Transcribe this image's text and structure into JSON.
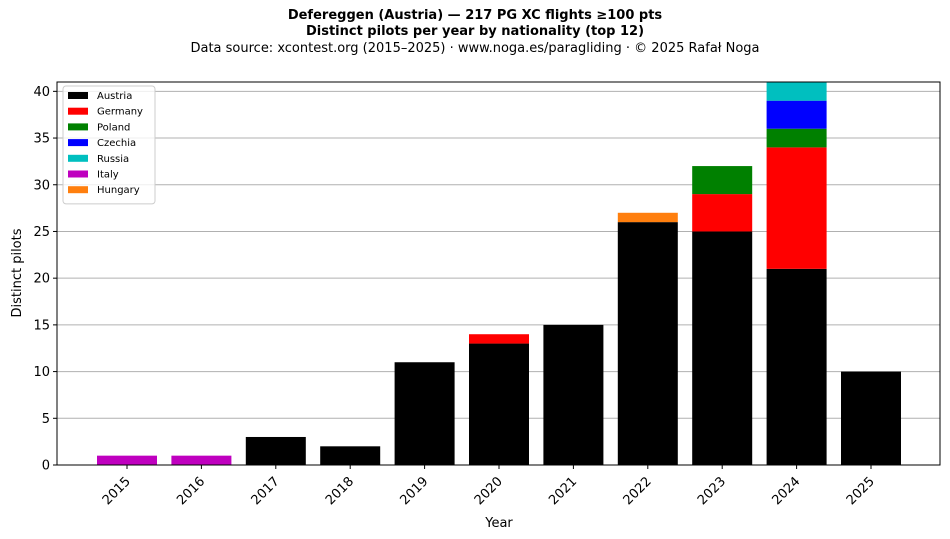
{
  "header": {
    "title_line1": "Defereggen (Austria)  —  217 PG XC flights ≥100 pts",
    "title_line2": "Distinct pilots per year by nationality (top 12)",
    "subtitle": "Data source: xcontest.org (2015–2025)  ·  www.noga.es/paragliding  ·  © 2025 Rafał Noga"
  },
  "chart_data": {
    "type": "bar",
    "stacked": true,
    "xlabel": "Year",
    "ylabel": "Distinct pilots",
    "ylim": [
      0,
      41
    ],
    "yticks": [
      0,
      5,
      10,
      15,
      20,
      25,
      30,
      35,
      40
    ],
    "grid": "horizontal",
    "legend_position": "top-left",
    "categories": [
      "2015",
      "2016",
      "2017",
      "2018",
      "2019",
      "2020",
      "2021",
      "2022",
      "2023",
      "2024",
      "2025"
    ],
    "series": [
      {
        "name": "Austria",
        "color": "#000000",
        "values": [
          0,
          0,
          3,
          2,
          11,
          13,
          15,
          26,
          25,
          21,
          10
        ]
      },
      {
        "name": "Germany",
        "color": "#ff0000",
        "values": [
          0,
          0,
          0,
          0,
          0,
          1,
          0,
          0,
          4,
          13,
          0
        ]
      },
      {
        "name": "Poland",
        "color": "#008000",
        "values": [
          0,
          0,
          0,
          0,
          0,
          0,
          0,
          0,
          3,
          2,
          0
        ]
      },
      {
        "name": "Czechia",
        "color": "#0000ff",
        "values": [
          0,
          0,
          0,
          0,
          0,
          0,
          0,
          0,
          0,
          3,
          0
        ]
      },
      {
        "name": "Russia",
        "color": "#00bfbf",
        "values": [
          0,
          0,
          0,
          0,
          0,
          0,
          0,
          0,
          0,
          2,
          0
        ]
      },
      {
        "name": "Italy",
        "color": "#bf00bf",
        "values": [
          1,
          1,
          0,
          0,
          0,
          0,
          0,
          0,
          0,
          0,
          0
        ]
      },
      {
        "name": "Hungary",
        "color": "#ff7f0e",
        "values": [
          0,
          0,
          0,
          0,
          0,
          0,
          0,
          1,
          0,
          0,
          0
        ]
      }
    ]
  }
}
